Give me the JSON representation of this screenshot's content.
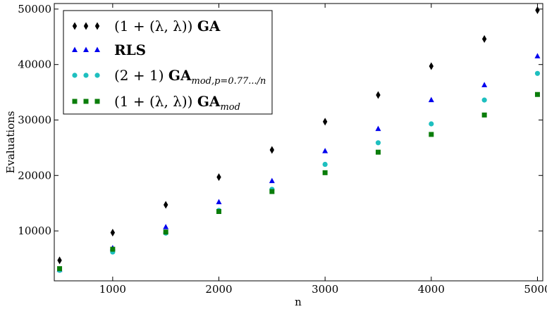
{
  "chart_data": {
    "type": "scatter",
    "xlabel": "n",
    "ylabel": "Evaluations",
    "xlim": [
      450,
      5050
    ],
    "ylim": [
      1000,
      51000
    ],
    "x_ticks": [
      1000,
      2000,
      3000,
      4000,
      5000
    ],
    "y_ticks": [
      10000,
      20000,
      30000,
      40000,
      50000
    ],
    "grid": false,
    "legend_position": "top-left",
    "x": [
      500,
      1000,
      1500,
      2000,
      2500,
      3000,
      3500,
      4000,
      4500,
      5000
    ],
    "series": [
      {
        "name": "(1 + (λ, λ)) GA",
        "legend_main": "(1 + (λ, λ))",
        "legend_bold": "GA",
        "legend_sub": "",
        "marker": "diamond",
        "color": "#000000",
        "values": [
          4700,
          9700,
          14700,
          19700,
          24600,
          29700,
          34500,
          39700,
          44600,
          49800
        ]
      },
      {
        "name": "RLS",
        "legend_main": "",
        "legend_bold": "RLS",
        "legend_sub": "",
        "marker": "triangle",
        "color": "#0000ee",
        "values": [
          3000,
          6900,
          10700,
          15200,
          19000,
          24400,
          28400,
          33600,
          36300,
          41500
        ]
      },
      {
        "name": "(2 + 1) GA mod,p=0.77.../n",
        "legend_main": "(2 + 1)",
        "legend_bold": "GA",
        "legend_sub": "mod,p=0.77.../n",
        "marker": "circle",
        "color": "#1ebfbf",
        "values": [
          2900,
          6200,
          9600,
          13700,
          17500,
          22000,
          25900,
          29300,
          33600,
          38400
        ]
      },
      {
        "name": "(1 + (λ, λ)) GA mod",
        "legend_main": "(1 + (λ, λ))",
        "legend_bold": "GA",
        "legend_sub": "mod",
        "marker": "square",
        "color": "#0a7d0a",
        "values": [
          3200,
          6700,
          9800,
          13500,
          17100,
          20500,
          24200,
          27400,
          30900,
          34600
        ]
      }
    ]
  }
}
